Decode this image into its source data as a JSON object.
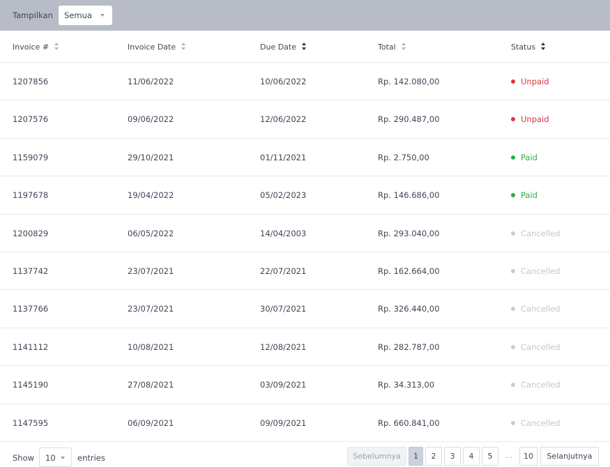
{
  "filter": {
    "label": "Tampilkan",
    "value": "Semua"
  },
  "table": {
    "columns": [
      {
        "label": "Invoice #",
        "sort": "none"
      },
      {
        "label": "Invoice Date",
        "sort": "none"
      },
      {
        "label": "Due Date",
        "sort": "active"
      },
      {
        "label": "Total",
        "sort": "none"
      },
      {
        "label": "Status",
        "sort": "active"
      }
    ],
    "rows": [
      {
        "invoice": "1207856",
        "invoice_date": "11/06/2022",
        "due_date": "10/06/2022",
        "total": "Rp. 142.080,00",
        "status": "Unpaid",
        "status_color": "#e0323f",
        "dot_color": "#e0323f"
      },
      {
        "invoice": "1207576",
        "invoice_date": "09/06/2022",
        "due_date": "12/06/2022",
        "total": "Rp. 290.487,00",
        "status": "Unpaid",
        "status_color": "#e0323f",
        "dot_color": "#e0323f"
      },
      {
        "invoice": "1159079",
        "invoice_date": "29/10/2021",
        "due_date": "01/11/2021",
        "total": "Rp. 2.750,00",
        "status": "Paid",
        "status_color": "#27b044",
        "dot_color": "#27b044"
      },
      {
        "invoice": "1197678",
        "invoice_date": "19/04/2022",
        "due_date": "05/02/2023",
        "total": "Rp. 146.686,00",
        "status": "Paid",
        "status_color": "#27b044",
        "dot_color": "#27b044"
      },
      {
        "invoice": "1200829",
        "invoice_date": "06/05/2022",
        "due_date": "14/04/2003",
        "total": "Rp. 293.040,00",
        "status": "Cancelled",
        "status_color": "#c3c6ce",
        "dot_color": "#c9ccd3"
      },
      {
        "invoice": "1137742",
        "invoice_date": "23/07/2021",
        "due_date": "22/07/2021",
        "total": "Rp. 162.664,00",
        "status": "Cancelled",
        "status_color": "#c3c6ce",
        "dot_color": "#c9ccd3"
      },
      {
        "invoice": "1137766",
        "invoice_date": "23/07/2021",
        "due_date": "30/07/2021",
        "total": "Rp. 326.440,00",
        "status": "Cancelled",
        "status_color": "#c3c6ce",
        "dot_color": "#c9ccd3"
      },
      {
        "invoice": "1141112",
        "invoice_date": "10/08/2021",
        "due_date": "12/08/2021",
        "total": "Rp. 282.787,00",
        "status": "Cancelled",
        "status_color": "#c3c6ce",
        "dot_color": "#c9ccd3"
      },
      {
        "invoice": "1145190",
        "invoice_date": "27/08/2021",
        "due_date": "03/09/2021",
        "total": "Rp. 34.313,00",
        "status": "Cancelled",
        "status_color": "#c3c6ce",
        "dot_color": "#c9ccd3"
      },
      {
        "invoice": "1147595",
        "invoice_date": "06/09/2021",
        "due_date": "09/09/2021",
        "total": "Rp. 660.841,00",
        "status": "Cancelled",
        "status_color": "#c3c6ce",
        "dot_color": "#c9ccd3"
      }
    ]
  },
  "footer": {
    "show_label": "Show",
    "entries_value": "10",
    "entries_label": "entries",
    "pagination": {
      "prev": "Sebelumnya",
      "pages": [
        "1",
        "2",
        "3",
        "4",
        "5",
        "...",
        "10"
      ],
      "current": "1",
      "next": "Selanjutnya"
    }
  }
}
